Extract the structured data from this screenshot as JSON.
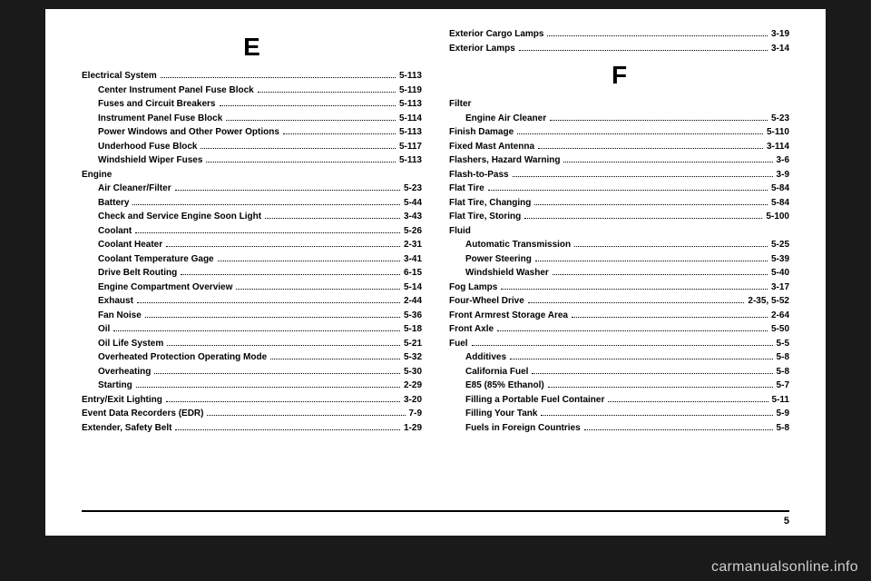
{
  "page_number": "5",
  "watermark": "carmanualsonline.info",
  "colors": {
    "page_bg": "#ffffff",
    "body_bg": "#1a1a1a",
    "text": "#000000",
    "rule": "#000000",
    "watermark": "#cfcfcf"
  },
  "left": {
    "letter": "E",
    "entries": [
      {
        "label": "Electrical System",
        "page": "5-113",
        "sub": false
      },
      {
        "label": "Center Instrument Panel Fuse Block",
        "page": "5-119",
        "sub": true
      },
      {
        "label": "Fuses and Circuit Breakers",
        "page": "5-113",
        "sub": true
      },
      {
        "label": "Instrument Panel Fuse Block",
        "page": "5-114",
        "sub": true
      },
      {
        "label": "Power Windows and Other Power Options",
        "page": "5-113",
        "sub": true
      },
      {
        "label": "Underhood Fuse Block",
        "page": "5-117",
        "sub": true
      },
      {
        "label": "Windshield Wiper Fuses",
        "page": "5-113",
        "sub": true
      },
      {
        "label": "Engine",
        "page": "",
        "sub": false,
        "nodots": true
      },
      {
        "label": "Air Cleaner/Filter",
        "page": "5-23",
        "sub": true
      },
      {
        "label": "Battery",
        "page": "5-44",
        "sub": true
      },
      {
        "label": "Check and Service Engine Soon Light",
        "page": "3-43",
        "sub": true
      },
      {
        "label": "Coolant",
        "page": "5-26",
        "sub": true
      },
      {
        "label": "Coolant Heater",
        "page": "2-31",
        "sub": true
      },
      {
        "label": "Coolant Temperature Gage",
        "page": "3-41",
        "sub": true
      },
      {
        "label": "Drive Belt Routing",
        "page": "6-15",
        "sub": true
      },
      {
        "label": "Engine Compartment Overview",
        "page": "5-14",
        "sub": true
      },
      {
        "label": "Exhaust",
        "page": "2-44",
        "sub": true
      },
      {
        "label": "Fan Noise",
        "page": "5-36",
        "sub": true
      },
      {
        "label": "Oil",
        "page": "5-18",
        "sub": true
      },
      {
        "label": "Oil Life System",
        "page": "5-21",
        "sub": true
      },
      {
        "label": "Overheated Protection Operating Mode",
        "page": "5-32",
        "sub": true
      },
      {
        "label": "Overheating",
        "page": "5-30",
        "sub": true
      },
      {
        "label": "Starting",
        "page": "2-29",
        "sub": true
      },
      {
        "label": "Entry/Exit Lighting",
        "page": "3-20",
        "sub": false
      },
      {
        "label": "Event Data Recorders (EDR)",
        "page": "7-9",
        "sub": false
      },
      {
        "label": "Extender, Safety Belt",
        "page": "1-29",
        "sub": false
      }
    ]
  },
  "right": {
    "top_entries": [
      {
        "label": "Exterior Cargo Lamps",
        "page": "3-19",
        "sub": false
      },
      {
        "label": "Exterior Lamps",
        "page": "3-14",
        "sub": false
      }
    ],
    "letter": "F",
    "entries": [
      {
        "label": "Filter",
        "page": "",
        "sub": false,
        "nodots": true
      },
      {
        "label": "Engine Air Cleaner",
        "page": "5-23",
        "sub": true
      },
      {
        "label": "Finish Damage",
        "page": "5-110",
        "sub": false
      },
      {
        "label": "Fixed Mast Antenna",
        "page": "3-114",
        "sub": false
      },
      {
        "label": "Flashers, Hazard Warning",
        "page": "3-6",
        "sub": false
      },
      {
        "label": "Flash-to-Pass",
        "page": "3-9",
        "sub": false
      },
      {
        "label": "Flat Tire",
        "page": "5-84",
        "sub": false
      },
      {
        "label": "Flat Tire, Changing",
        "page": "5-84",
        "sub": false
      },
      {
        "label": "Flat Tire, Storing",
        "page": "5-100",
        "sub": false
      },
      {
        "label": "Fluid",
        "page": "",
        "sub": false,
        "nodots": true
      },
      {
        "label": "Automatic Transmission",
        "page": "5-25",
        "sub": true
      },
      {
        "label": "Power Steering",
        "page": "5-39",
        "sub": true
      },
      {
        "label": "Windshield Washer",
        "page": "5-40",
        "sub": true
      },
      {
        "label": "Fog Lamps",
        "page": "3-17",
        "sub": false
      },
      {
        "label": "Four-Wheel Drive",
        "page": "2-35, 5-52",
        "sub": false
      },
      {
        "label": "Front Armrest Storage Area",
        "page": "2-64",
        "sub": false
      },
      {
        "label": "Front Axle",
        "page": "5-50",
        "sub": false
      },
      {
        "label": "Fuel",
        "page": "5-5",
        "sub": false
      },
      {
        "label": "Additives",
        "page": "5-8",
        "sub": true
      },
      {
        "label": "California Fuel",
        "page": "5-8",
        "sub": true
      },
      {
        "label": "E85 (85% Ethanol)",
        "page": "5-7",
        "sub": true
      },
      {
        "label": "Filling a Portable Fuel Container",
        "page": "5-11",
        "sub": true
      },
      {
        "label": "Filling Your Tank",
        "page": "5-9",
        "sub": true
      },
      {
        "label": "Fuels in Foreign Countries",
        "page": "5-8",
        "sub": true
      }
    ]
  }
}
